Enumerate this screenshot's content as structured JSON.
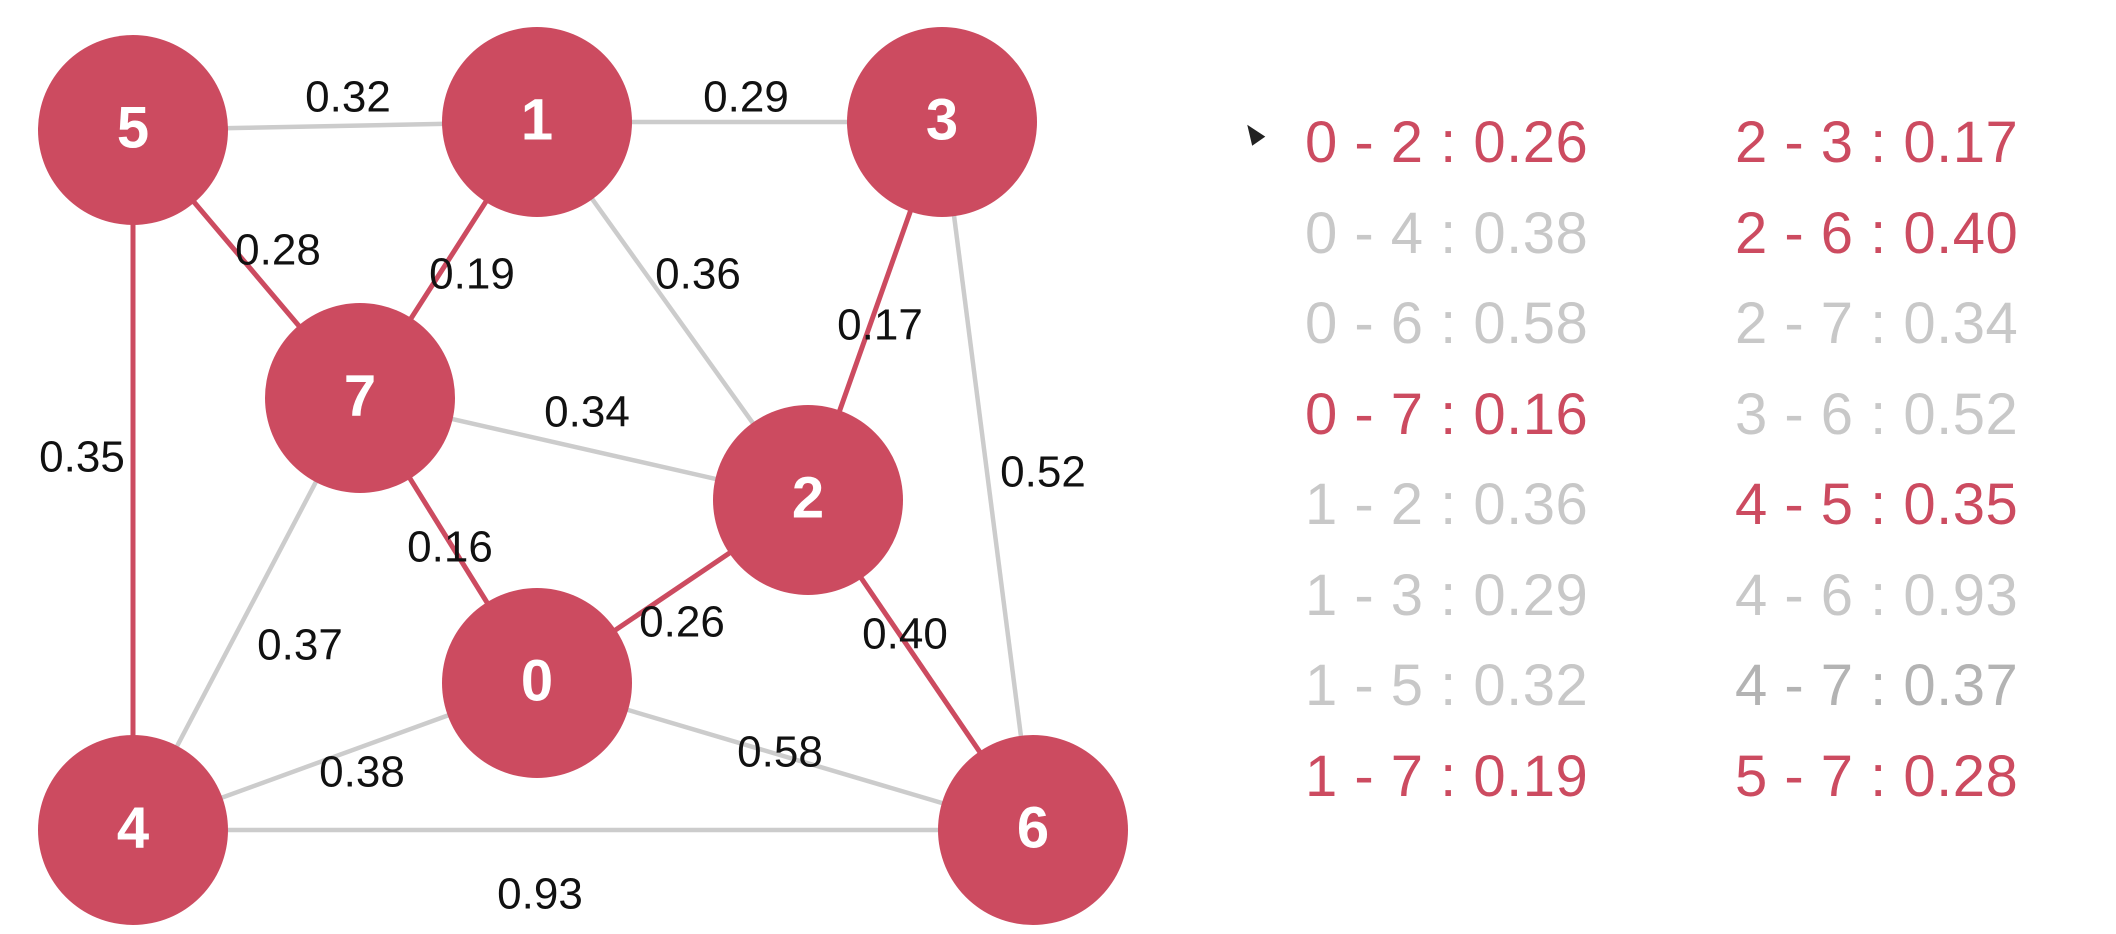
{
  "colors": {
    "accent": "#cc4b60",
    "inactive_edge": "#cccccc",
    "inactive_text": "#c8c8c8",
    "inactive_text_dark": "#b3b3b3"
  },
  "nodes": [
    {
      "id": "0",
      "label": "0"
    },
    {
      "id": "1",
      "label": "1"
    },
    {
      "id": "2",
      "label": "2"
    },
    {
      "id": "3",
      "label": "3"
    },
    {
      "id": "4",
      "label": "4"
    },
    {
      "id": "5",
      "label": "5"
    },
    {
      "id": "6",
      "label": "6"
    },
    {
      "id": "7",
      "label": "7"
    }
  ],
  "edges": [
    {
      "from": "0",
      "to": "2",
      "weight": "0.26",
      "selected": true
    },
    {
      "from": "0",
      "to": "4",
      "weight": "0.38",
      "selected": false
    },
    {
      "from": "0",
      "to": "6",
      "weight": "0.58",
      "selected": false
    },
    {
      "from": "0",
      "to": "7",
      "weight": "0.16",
      "selected": true
    },
    {
      "from": "1",
      "to": "2",
      "weight": "0.36",
      "selected": false
    },
    {
      "from": "1",
      "to": "3",
      "weight": "0.29",
      "selected": false
    },
    {
      "from": "1",
      "to": "5",
      "weight": "0.32",
      "selected": false
    },
    {
      "from": "1",
      "to": "7",
      "weight": "0.19",
      "selected": true
    },
    {
      "from": "2",
      "to": "3",
      "weight": "0.17",
      "selected": true
    },
    {
      "from": "2",
      "to": "6",
      "weight": "0.40",
      "selected": true
    },
    {
      "from": "2",
      "to": "7",
      "weight": "0.34",
      "selected": false
    },
    {
      "from": "3",
      "to": "6",
      "weight": "0.52",
      "selected": false
    },
    {
      "from": "4",
      "to": "5",
      "weight": "0.35",
      "selected": true
    },
    {
      "from": "4",
      "to": "6",
      "weight": "0.93",
      "selected": false
    },
    {
      "from": "4",
      "to": "7",
      "weight": "0.37",
      "selected": false
    },
    {
      "from": "5",
      "to": "7",
      "weight": "0.28",
      "selected": true
    }
  ],
  "edge_list": [
    {
      "text": "0 - 2 : 0.26",
      "state": "selected"
    },
    {
      "text": "0 - 4 : 0.38",
      "state": "inactive"
    },
    {
      "text": "0 - 6 : 0.58",
      "state": "inactive"
    },
    {
      "text": "0 - 7 : 0.16",
      "state": "selected"
    },
    {
      "text": "1 - 2 : 0.36",
      "state": "inactive"
    },
    {
      "text": "1 - 3 : 0.29",
      "state": "inactive"
    },
    {
      "text": "1 - 5 : 0.32",
      "state": "inactive"
    },
    {
      "text": "1 - 7 : 0.19",
      "state": "selected"
    },
    {
      "text": "2 - 3 : 0.17",
      "state": "selected"
    },
    {
      "text": "2 - 6 : 0.40",
      "state": "selected"
    },
    {
      "text": "2 - 7 : 0.34",
      "state": "inactive"
    },
    {
      "text": "3 - 6 : 0.52",
      "state": "inactive"
    },
    {
      "text": "4 - 5 : 0.35",
      "state": "selected"
    },
    {
      "text": "4 - 6 : 0.93",
      "state": "inactive"
    },
    {
      "text": "4 - 7 : 0.37",
      "state": "current"
    },
    {
      "text": "5 - 7 : 0.28",
      "state": "selected"
    }
  ]
}
